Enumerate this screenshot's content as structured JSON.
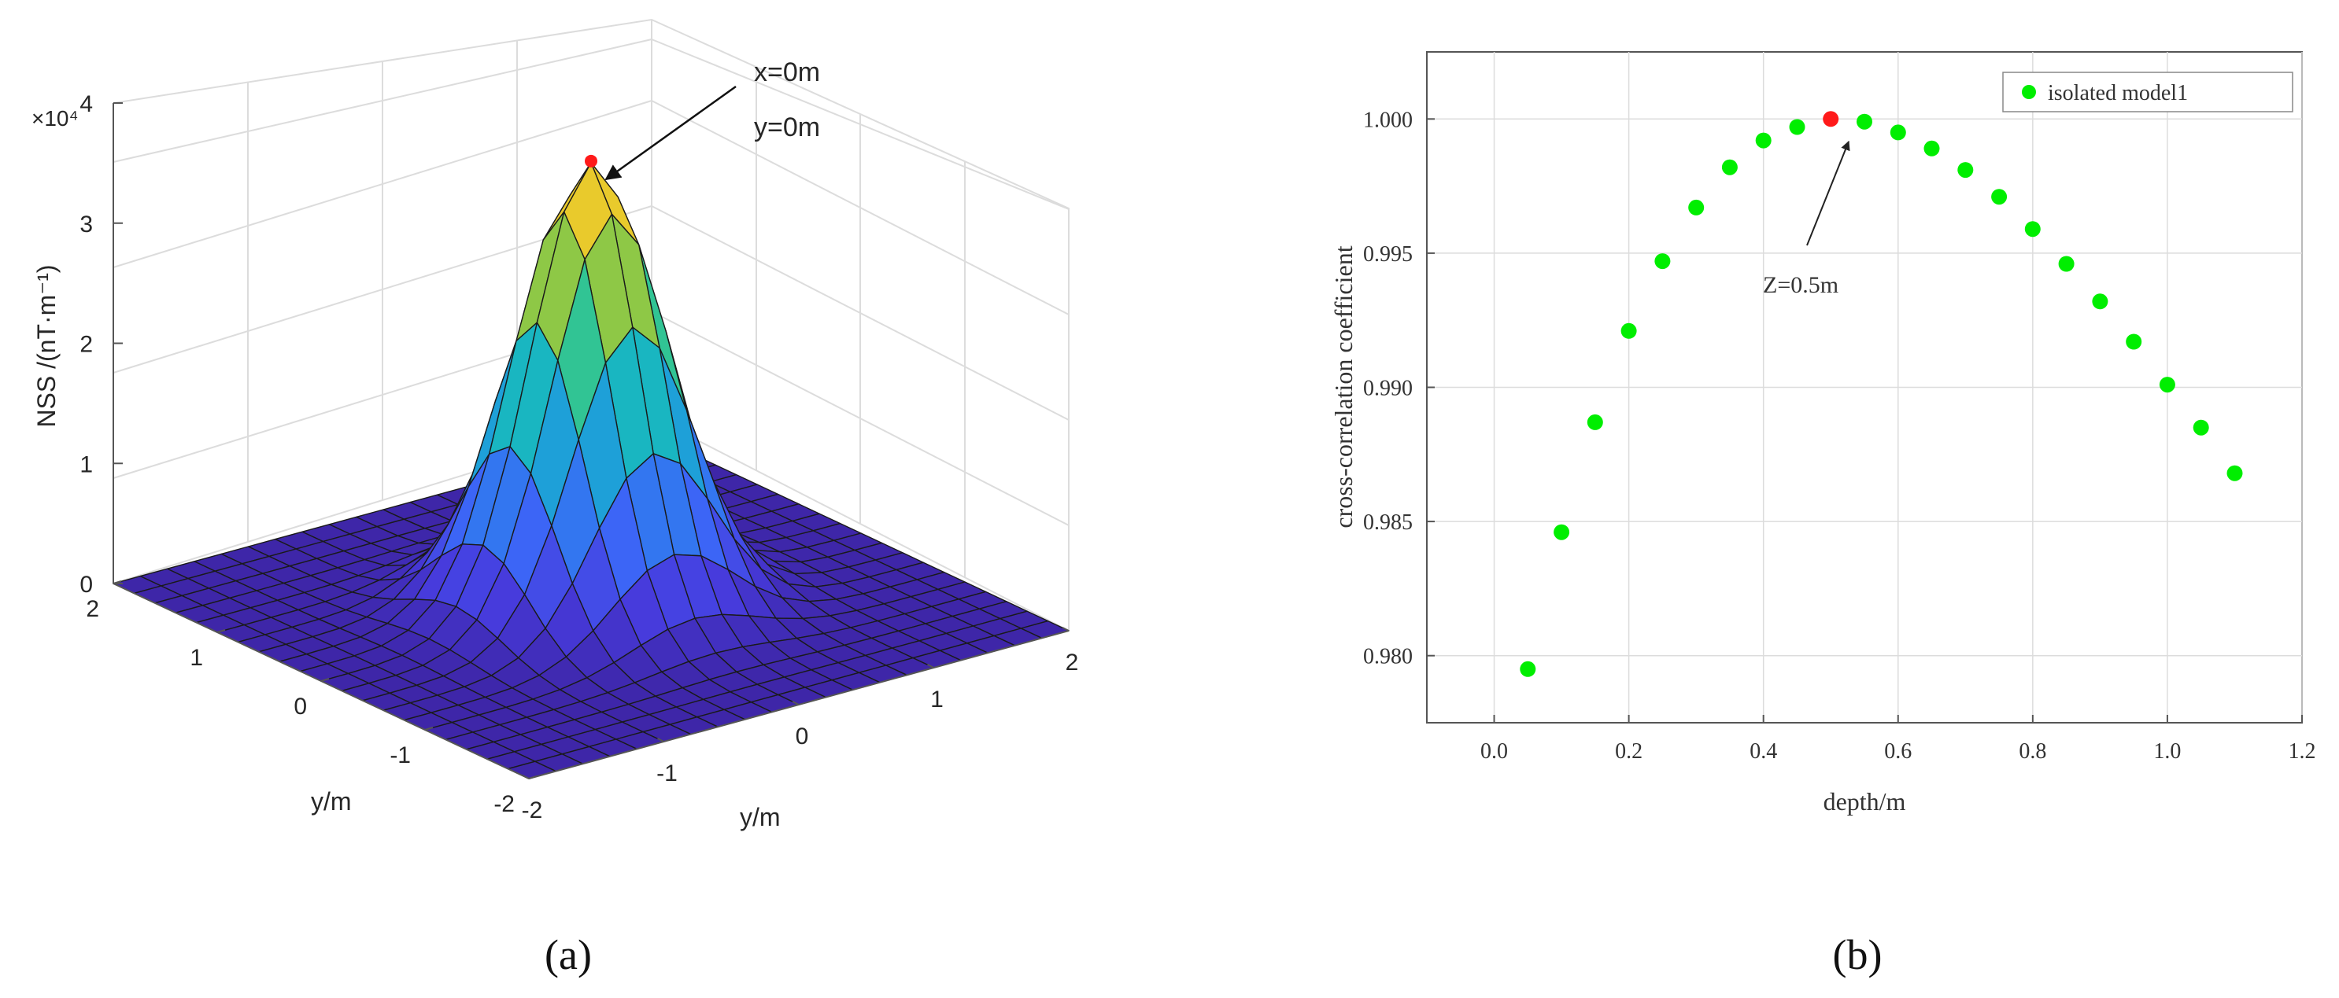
{
  "panel_a": {
    "caption": "(a)",
    "annotation_lines": [
      "x=0m",
      "y=0m"
    ],
    "exponent_label": "×10⁴"
  },
  "panel_b": {
    "caption": "(b)",
    "annotation": "Z=0.5m",
    "legend_label": "isolated model1"
  },
  "colors": {
    "point": "#00ee00",
    "peak": "#ff1a1a",
    "surface_base": "#4b3bd8",
    "surface_peak": "#f9d630",
    "grid": "#dcdcdc"
  },
  "chart_data": [
    {
      "type": "surface",
      "zlabel": "NSS /(nT·m⁻¹)",
      "xlabel": "y/m",
      "ylabel": "y/m",
      "xlim": [
        -2,
        2
      ],
      "ylim": [
        -2,
        2
      ],
      "zlim": [
        0,
        4
      ],
      "z_scale_exponent": 4,
      "z_ticks": [
        "0",
        "1",
        "2",
        "3",
        "4"
      ],
      "x_ticks": [
        "-2",
        "-1",
        "0",
        "1",
        "2"
      ],
      "y_ticks": [
        "2",
        "1",
        "0",
        "-1",
        "-2"
      ],
      "grid": true,
      "grid_points": 21,
      "peak": {
        "x": 0,
        "y": 0,
        "z": 3.7
      },
      "sigma": 0.45,
      "colormap": "parula"
    },
    {
      "type": "scatter",
      "xlabel": "depth/m",
      "ylabel": "cross-correlation coefficient",
      "xlim": [
        -0.1,
        1.2
      ],
      "ylim": [
        0.9775,
        1.0025
      ],
      "x_ticks": [
        "0.0",
        "0.2",
        "0.4",
        "0.6",
        "0.8",
        "1.0",
        "1.2"
      ],
      "y_ticks": [
        "0.980",
        "0.985",
        "0.990",
        "0.995",
        "1.000"
      ],
      "grid": true,
      "legend_position": "top-right",
      "series": [
        {
          "name": "isolated model1",
          "x": [
            0.05,
            0.1,
            0.15,
            0.2,
            0.25,
            0.3,
            0.35,
            0.4,
            0.45,
            0.5,
            0.55,
            0.6,
            0.65,
            0.7,
            0.75,
            0.8,
            0.85,
            0.9,
            0.95,
            1.0,
            1.05,
            1.1
          ],
          "y": [
            0.9795,
            0.9846,
            0.9887,
            0.9921,
            0.9947,
            0.9967,
            0.9982,
            0.9992,
            0.9997,
            1.0,
            0.9999,
            0.9995,
            0.9989,
            0.9981,
            0.9971,
            0.9959,
            0.9946,
            0.9932,
            0.9917,
            0.9901,
            0.9885,
            0.9868
          ]
        }
      ],
      "highlight": {
        "x": 0.5,
        "y": 1.0,
        "label": "Z=0.5m"
      }
    }
  ]
}
